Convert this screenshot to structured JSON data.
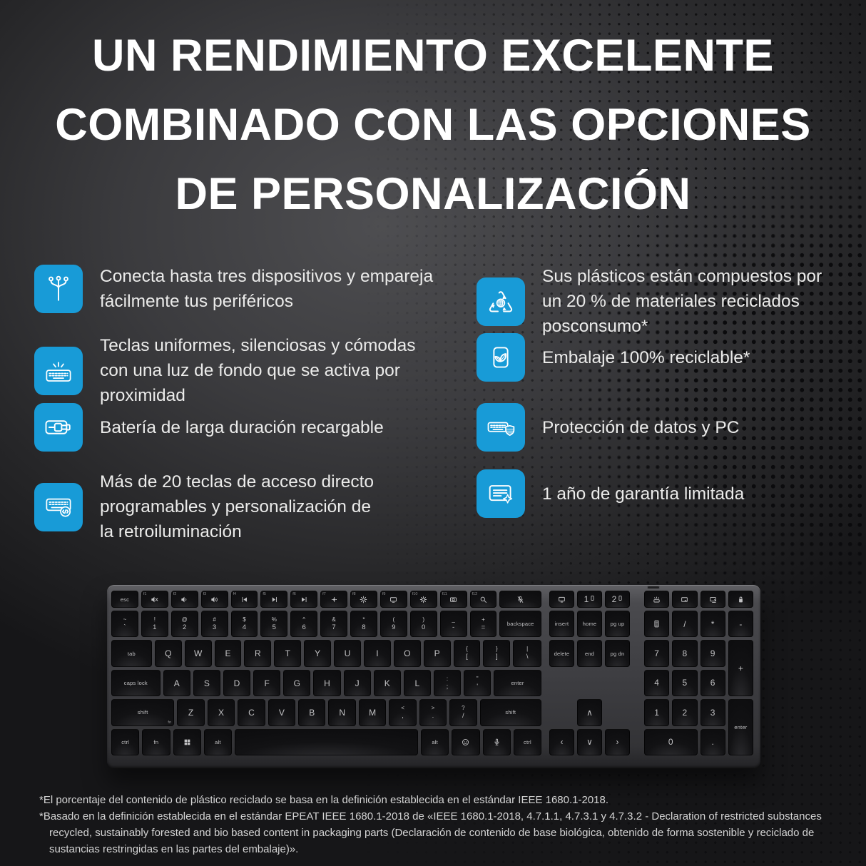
{
  "title": {
    "line1": "UN RENDIMIENTO EXCELENTE",
    "line2": "COMBINADO CON LAS OPCIONES",
    "line3": "DE PERSONALIZACIÓN"
  },
  "colors": {
    "accent_blue": "#189bd7",
    "background_dark": "#1a1a1c",
    "text_light": "#ebebea"
  },
  "features": {
    "left": [
      {
        "icon": "multi-device",
        "text": "Conecta hasta tres dispositivos y empareja\nfácilmente tus periféricos"
      },
      {
        "icon": "kb-backlight",
        "text": "Teclas uniformes, silenciosas y cómodas\ncon una luz de fondo que se activa por\nproximidad"
      },
      {
        "icon": "battery",
        "text": "Batería de larga duración recargable"
      },
      {
        "icon": "kb-program",
        "text": "Más de 20 teclas de acceso directo\nprogramables y personalización de\nla retroiluminación"
      }
    ],
    "right": [
      {
        "icon": "recycle",
        "text": "Sus plásticos están compuestos por\nun 20 % de materiales reciclados\nposconsumo*"
      },
      {
        "icon": "eco-pack",
        "text": "Embalaje 100% reciclable*"
      },
      {
        "icon": "kb-shield",
        "text": "Protección de datos y PC"
      },
      {
        "icon": "warranty",
        "text": "1 año de garantía limitada"
      }
    ]
  },
  "keyboard": {
    "main_rows": [
      [
        {
          "t": "esc",
          "s": 1
        },
        {
          "f": "f1",
          "i": "mute"
        },
        {
          "f": "f2",
          "i": "voldn"
        },
        {
          "f": "f3",
          "i": "volup"
        },
        {
          "f": "f4",
          "i": "prev"
        },
        {
          "f": "f5",
          "i": "play"
        },
        {
          "f": "f6",
          "i": "next"
        },
        {
          "f": "f7",
          "i": "dim"
        },
        {
          "f": "f8",
          "i": "bright"
        },
        {
          "f": "f9",
          "i": "display"
        },
        {
          "f": "f10",
          "i": "gear"
        },
        {
          "f": "f11",
          "i": "camera"
        },
        {
          "f": "f12",
          "i": "search"
        },
        {
          "i": "micoff",
          "w": 1.55
        }
      ],
      [
        {
          "top": "~",
          "bot": "`"
        },
        {
          "top": "!",
          "bot": "1"
        },
        {
          "top": "@",
          "bot": "2"
        },
        {
          "top": "#",
          "bot": "3"
        },
        {
          "top": "$",
          "bot": "4"
        },
        {
          "top": "%",
          "bot": "5"
        },
        {
          "top": "^",
          "bot": "6"
        },
        {
          "top": "&",
          "bot": "7"
        },
        {
          "top": "*",
          "bot": "8"
        },
        {
          "top": "(",
          "bot": "9"
        },
        {
          "top": ")",
          "bot": "0"
        },
        {
          "top": "_",
          "bot": "-"
        },
        {
          "top": "+",
          "bot": "="
        },
        {
          "t": "backspace",
          "s": 1,
          "w": 1.55
        }
      ],
      [
        {
          "t": "tab",
          "s": 1,
          "w": 1.5
        },
        {
          "t": "Q"
        },
        {
          "t": "W"
        },
        {
          "t": "E"
        },
        {
          "t": "R"
        },
        {
          "t": "T"
        },
        {
          "t": "Y"
        },
        {
          "t": "U"
        },
        {
          "t": "I"
        },
        {
          "t": "O"
        },
        {
          "t": "P"
        },
        {
          "top": "{",
          "bot": "["
        },
        {
          "top": "}",
          "bot": "]"
        },
        {
          "top": "|",
          "bot": "\\",
          "w": 1.05
        }
      ],
      [
        {
          "t": "caps lock",
          "s": 1,
          "w": 1.8
        },
        {
          "t": "A"
        },
        {
          "t": "S"
        },
        {
          "t": "D"
        },
        {
          "t": "F"
        },
        {
          "t": "G"
        },
        {
          "t": "H"
        },
        {
          "t": "J"
        },
        {
          "t": "K"
        },
        {
          "t": "L"
        },
        {
          "top": ":",
          "bot": ";"
        },
        {
          "top": "\"",
          "bot": "'"
        },
        {
          "t": "enter",
          "s": 1,
          "w": 1.75
        }
      ],
      [
        {
          "t": "shift",
          "s": 1,
          "sub": "fn",
          "w": 2.3
        },
        {
          "t": "Z"
        },
        {
          "t": "X"
        },
        {
          "t": "C"
        },
        {
          "t": "V"
        },
        {
          "t": "B"
        },
        {
          "t": "N"
        },
        {
          "t": "M"
        },
        {
          "top": "<",
          "bot": ","
        },
        {
          "top": ">",
          "bot": "."
        },
        {
          "top": "?",
          "bot": "/"
        },
        {
          "t": "shift",
          "s": 1,
          "w": 2.25
        }
      ],
      [
        {
          "t": "ctrl",
          "s": 1
        },
        {
          "t": "fn",
          "s": 1
        },
        {
          "i": "win"
        },
        {
          "t": "alt",
          "s": 1
        },
        {
          "space": 1,
          "w": 6.55
        },
        {
          "t": "alt",
          "s": 1
        },
        {
          "i": "emoji"
        },
        {
          "i": "mic"
        },
        {
          "t": "ctrl",
          "s": 1
        }
      ]
    ],
    "nav_grid": [
      {
        "r": 1,
        "c": 1,
        "i": "monitor"
      },
      {
        "r": 1,
        "c": 2,
        "t": "1",
        "i": "phone"
      },
      {
        "r": 1,
        "c": 3,
        "t": "2",
        "i": "phone"
      },
      {
        "r": 2,
        "c": 1,
        "t": "insert",
        "s": 1
      },
      {
        "r": 2,
        "c": 2,
        "t": "home",
        "s": 1
      },
      {
        "r": 2,
        "c": 3,
        "t": "pg up",
        "s": 1
      },
      {
        "r": 3,
        "c": 1,
        "t": "delete",
        "s": 1
      },
      {
        "r": 3,
        "c": 2,
        "t": "end",
        "s": 1
      },
      {
        "r": 3,
        "c": 3,
        "t": "pg dn",
        "s": 1
      },
      {
        "r": 5,
        "c": 2,
        "t": "∧"
      },
      {
        "r": 6,
        "c": 1,
        "t": "‹"
      },
      {
        "r": 6,
        "c": 2,
        "t": "∨"
      },
      {
        "r": 6,
        "c": 3,
        "t": "›"
      }
    ],
    "numpad_grid": [
      {
        "r": 1,
        "c": 1,
        "i": "backlight"
      },
      {
        "r": 1,
        "c": 2,
        "i": "screen"
      },
      {
        "r": 1,
        "c": 3,
        "i": "snip"
      },
      {
        "r": 1,
        "c": 4,
        "i": "lock"
      },
      {
        "r": 2,
        "c": 1,
        "i": "calc"
      },
      {
        "r": 2,
        "c": 2,
        "t": "/"
      },
      {
        "r": 2,
        "c": 3,
        "t": "*"
      },
      {
        "r": 2,
        "c": 4,
        "t": "-"
      },
      {
        "r": 3,
        "c": 1,
        "t": "7"
      },
      {
        "r": 3,
        "c": 2,
        "t": "8"
      },
      {
        "r": 3,
        "c": 3,
        "t": "9"
      },
      {
        "r": 3,
        "c": 4,
        "t": "+",
        "rs": 2
      },
      {
        "r": 4,
        "c": 1,
        "t": "4"
      },
      {
        "r": 4,
        "c": 2,
        "t": "5"
      },
      {
        "r": 4,
        "c": 3,
        "t": "6"
      },
      {
        "r": 5,
        "c": 1,
        "t": "1"
      },
      {
        "r": 5,
        "c": 2,
        "t": "2"
      },
      {
        "r": 5,
        "c": 3,
        "t": "3"
      },
      {
        "r": 5,
        "c": 4,
        "t": "enter",
        "s": 1,
        "rs": 2
      },
      {
        "r": 6,
        "c": 1,
        "t": "0",
        "cs": 2
      },
      {
        "r": 6,
        "c": 3,
        "t": "."
      }
    ]
  },
  "footnotes": [
    "*El porcentaje del contenido de plástico reciclado se basa en la definición establecida en el estándar IEEE 1680.1-2018.",
    "*Basado en la definición establecida en el estándar EPEAT IEEE 1680.1-2018 de «IEEE 1680.1-2018, 4.7.1.1, 4.7.3.1 y 4.7.3.2 - Declaration of restricted substances recycled, sustainably forested and bio based content in packaging parts (Declaración de contenido de base biológica, obtenido de forma sostenible y reciclado de sustancias restringidas en las partes del embalaje)»."
  ]
}
